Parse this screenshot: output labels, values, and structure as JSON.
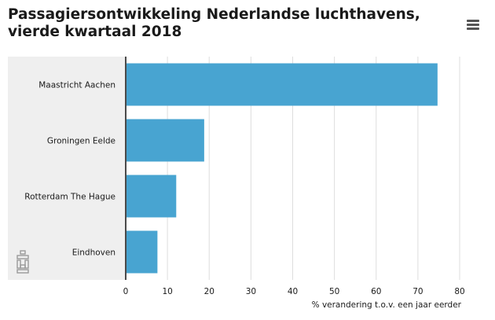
{
  "title": "Passagiersontwikkeling Nederlandse luchthavens, vierde kwartaal 2018",
  "menu_icon": "hamburger-menu-icon",
  "logo_icon": "cbs-logo-icon",
  "colors": {
    "bar": "#48a4d1",
    "panel": "#efefef",
    "grid": "#dedede",
    "axis": "#4a4a4a"
  },
  "chart_data": {
    "type": "bar",
    "orientation": "horizontal",
    "title": "Passagiersontwikkeling Nederlandse luchthavens, vierde kwartaal 2018",
    "categories": [
      "Maastricht Aachen",
      "Groningen Eelde",
      "Rotterdam The Hague",
      "Eindhoven"
    ],
    "values": [
      74.7,
      18.8,
      12.1,
      7.6
    ],
    "xlabel": "% verandering t.o.v. een jaar eerder",
    "ylabel": "",
    "xlim": [
      0,
      80
    ],
    "xticks": [
      "0",
      "10",
      "20",
      "30",
      "40",
      "50",
      "60",
      "70",
      "80"
    ],
    "grid": true,
    "legend": "none"
  }
}
